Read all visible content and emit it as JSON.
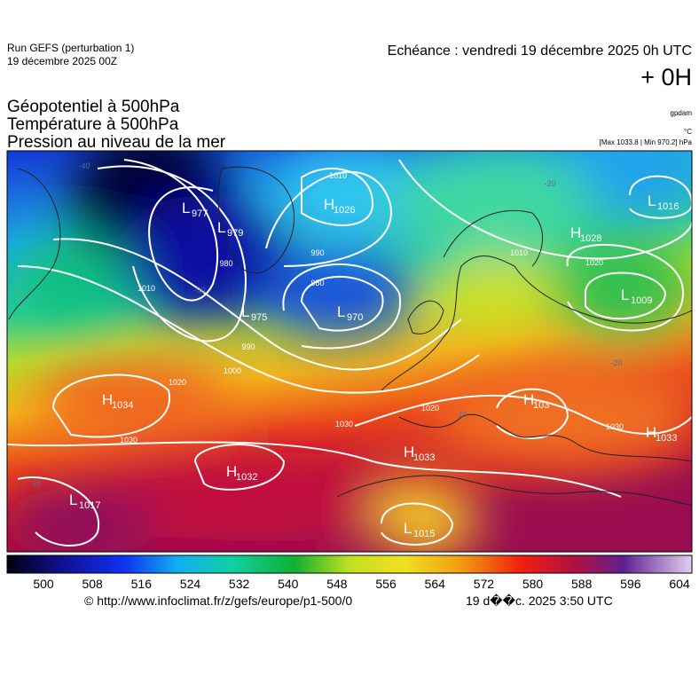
{
  "header": {
    "run": "Run GEFS (perturbation 1)",
    "run_date": "19 décembre 2025 00Z",
    "valid_time": "Echéance : vendredi 19 décembre 2025 0h UTC",
    "offset": "+ 0H"
  },
  "titles": [
    "Géopotentiel à 500hPa",
    "Température à 500hPa",
    "Pression au niveau de la mer"
  ],
  "units": [
    "gpdam",
    "°C",
    "[Max 1033.8 | Min 970.2] hPa"
  ],
  "pressure_centers": [
    {
      "kind": "L",
      "value": "977"
    },
    {
      "kind": "L",
      "value": "979"
    },
    {
      "kind": "H",
      "value": "1026"
    },
    {
      "kind": "L",
      "value": "975"
    },
    {
      "kind": "L",
      "value": "970"
    },
    {
      "kind": "H",
      "value": "1028"
    },
    {
      "kind": "L",
      "value": "1016"
    },
    {
      "kind": "L",
      "value": "1009"
    },
    {
      "kind": "H",
      "value": "1034"
    },
    {
      "kind": "H",
      "value": "1032"
    },
    {
      "kind": "L",
      "value": "1017"
    },
    {
      "kind": "H",
      "value": "103"
    },
    {
      "kind": "H",
      "value": "1033"
    },
    {
      "kind": "H",
      "value": "1033"
    },
    {
      "kind": "L",
      "value": "1015"
    }
  ],
  "isobar_labels": [
    "1010",
    "980",
    "990",
    "980",
    "990",
    "1000",
    "1010",
    "1020",
    "1030",
    "1020",
    "1030",
    "1020",
    "1030",
    "1010"
  ],
  "temperature_labels": [
    "-40",
    "-30",
    "-20",
    "-10",
    "-10",
    "-20"
  ],
  "colorbar": {
    "labels": [
      500,
      508,
      516,
      524,
      532,
      540,
      548,
      556,
      564,
      572,
      580,
      588,
      596,
      604
    ]
  },
  "footer": {
    "url": "© http://www.infoclimat.fr/z/gefs/europe/p1-500/0",
    "time": "19 d��c. 2025  3:50 UTC"
  }
}
